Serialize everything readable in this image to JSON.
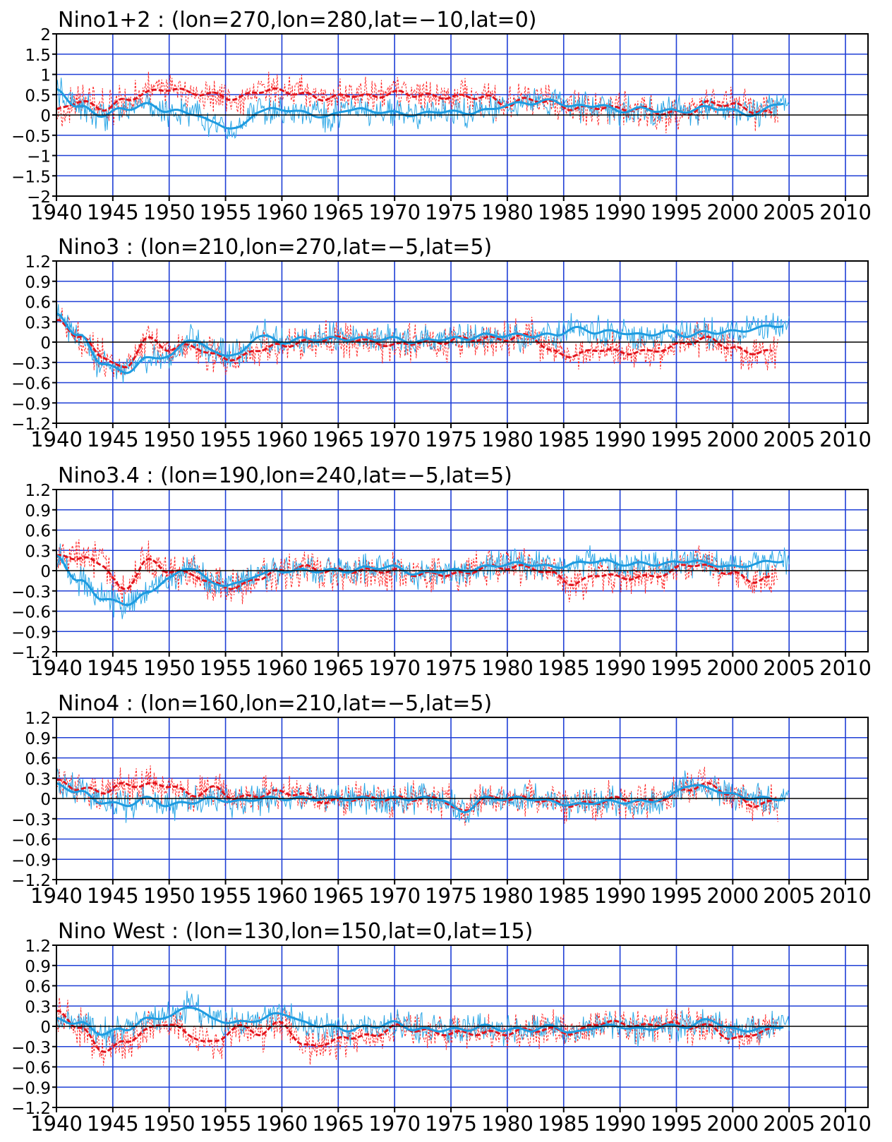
{
  "colors": {
    "frame": "#000000",
    "grid": "#1f3fd6",
    "zero_line": "#000000",
    "series_raw": "#ff2020",
    "series_smooth": "#e0141c",
    "series_blue_raw": "#2aa6e6",
    "series_blue_smooth": "#1e9be0"
  },
  "chart_data": [
    {
      "type": "line",
      "title": "Nino1+2 : (lon=270,lon=280,lat=-10,lat=0)",
      "xlim": [
        1940,
        2012
      ],
      "ylim": [
        -2,
        2
      ],
      "x_ticks": [
        1940,
        1945,
        1950,
        1955,
        1960,
        1965,
        1970,
        1975,
        1980,
        1985,
        1990,
        1995,
        2000,
        2005,
        2010
      ],
      "x_tick_labels": [
        "1940",
        "1945",
        "1950",
        "1955",
        "1960",
        "1965",
        "1970",
        "1975",
        "1980",
        "1985",
        "1990",
        "1995",
        "2000",
        "2005",
        "2010"
      ],
      "y_ticks": [
        2,
        1.5,
        1,
        0.5,
        0,
        -0.5,
        -1,
        -1.5,
        -2
      ],
      "y_tick_labels": [
        "2",
        "1.5",
        "1",
        "0.5",
        "0",
        "-0.5",
        "-1",
        "-1.5",
        "-2"
      ],
      "grid": true,
      "series": [
        {
          "color": "red",
          "style": "dashed",
          "end_year": 2004,
          "x": [
            1940,
            1942,
            1944,
            1946,
            1948,
            1950,
            1952,
            1954,
            1956,
            1958,
            1960,
            1962,
            1964,
            1966,
            1968,
            1970,
            1972,
            1974,
            1976,
            1978,
            1980,
            1982,
            1984,
            1986,
            1988,
            1990,
            1992,
            1994,
            1996,
            1998,
            2000,
            2002,
            2004
          ],
          "y": [
            0.1,
            0.35,
            0.15,
            0.35,
            0.55,
            0.65,
            0.55,
            0.5,
            0.4,
            0.6,
            0.6,
            0.5,
            0.4,
            0.5,
            0.45,
            0.55,
            0.5,
            0.45,
            0.45,
            0.45,
            0.25,
            0.4,
            0.3,
            0.15,
            0.2,
            0.15,
            0.15,
            0.05,
            0.05,
            0.3,
            0.25,
            0.1,
            0.0
          ]
        },
        {
          "color": "blue",
          "style": "solid",
          "end_year": 2005,
          "x": [
            1940,
            1942,
            1944,
            1946,
            1948,
            1950,
            1952,
            1954,
            1956,
            1958,
            1960,
            1962,
            1964,
            1966,
            1968,
            1970,
            1972,
            1974,
            1976,
            1978,
            1980,
            1982,
            1984,
            1986,
            1988,
            1990,
            1992,
            1994,
            1996,
            1998,
            2000,
            2002,
            2004
          ],
          "y": [
            0.6,
            0.2,
            0.0,
            0.15,
            0.25,
            0.1,
            0.05,
            -0.2,
            -0.35,
            0.1,
            0.15,
            0.05,
            -0.05,
            0.15,
            0.1,
            0.05,
            0.0,
            0.1,
            0.05,
            0.1,
            0.25,
            0.3,
            0.35,
            0.2,
            0.25,
            0.1,
            0.15,
            0.1,
            0.1,
            0.2,
            0.1,
            0.0,
            0.3
          ]
        }
      ]
    },
    {
      "type": "line",
      "title": "Nino3 : (lon=210,lon=270,lat=-5,lat=5)",
      "xlim": [
        1940,
        2012
      ],
      "ylim": [
        -1.2,
        1.2
      ],
      "x_ticks": [
        1940,
        1945,
        1950,
        1955,
        1960,
        1965,
        1970,
        1975,
        1980,
        1985,
        1990,
        1995,
        2000,
        2005,
        2010
      ],
      "x_tick_labels": [
        "1940",
        "1945",
        "1950",
        "1955",
        "1960",
        "1965",
        "1970",
        "1975",
        "1980",
        "1985",
        "1990",
        "1995",
        "2000",
        "2005",
        "2010"
      ],
      "y_ticks": [
        1.2,
        0.9,
        0.6,
        0.3,
        0,
        -0.3,
        -0.6,
        -0.9,
        -1.2
      ],
      "y_tick_labels": [
        "1.2",
        "0.9",
        "0.6",
        "0.3",
        "0",
        "-0.3",
        "-0.6",
        "-0.9",
        "-1.2"
      ],
      "grid": true,
      "series": [
        {
          "color": "red",
          "style": "dashed",
          "end_year": 2004,
          "x": [
            1940,
            1942,
            1944,
            1946,
            1948,
            1950,
            1952,
            1954,
            1956,
            1958,
            1960,
            1962,
            1964,
            1966,
            1968,
            1970,
            1972,
            1974,
            1976,
            1978,
            1980,
            1982,
            1984,
            1986,
            1988,
            1990,
            1992,
            1994,
            1996,
            1998,
            2000,
            2002,
            2004
          ],
          "y": [
            0.3,
            0.1,
            -0.2,
            -0.4,
            0.05,
            -0.1,
            -0.05,
            -0.2,
            -0.25,
            -0.1,
            -0.05,
            0.0,
            0.05,
            0.05,
            0.0,
            -0.05,
            0.0,
            0.0,
            0.05,
            0.05,
            0.05,
            0.1,
            -0.15,
            -0.2,
            -0.1,
            -0.15,
            -0.15,
            -0.1,
            0.0,
            0.05,
            -0.1,
            -0.15,
            -0.15
          ]
        },
        {
          "color": "blue",
          "style": "solid",
          "end_year": 2005,
          "x": [
            1940,
            1942,
            1944,
            1946,
            1948,
            1950,
            1952,
            1954,
            1956,
            1958,
            1960,
            1962,
            1964,
            1966,
            1968,
            1970,
            1972,
            1974,
            1976,
            1978,
            1980,
            1982,
            1984,
            1986,
            1988,
            1990,
            1992,
            1994,
            1996,
            1998,
            2000,
            2002,
            2004
          ],
          "y": [
            0.4,
            0.1,
            -0.3,
            -0.45,
            -0.25,
            -0.2,
            0.05,
            -0.15,
            -0.2,
            0.1,
            0.0,
            0.05,
            0.05,
            0.05,
            0.05,
            0.05,
            0.0,
            0.05,
            0.05,
            0.1,
            0.1,
            0.1,
            0.1,
            0.2,
            0.15,
            0.15,
            0.1,
            0.15,
            0.1,
            0.15,
            0.15,
            0.2,
            0.25
          ]
        }
      ]
    },
    {
      "type": "line",
      "title": "Nino3.4 : (lon=190,lon=240,lat=-5,lat=5)",
      "xlim": [
        1940,
        2012
      ],
      "ylim": [
        -1.2,
        1.2
      ],
      "x_ticks": [
        1940,
        1945,
        1950,
        1955,
        1960,
        1965,
        1970,
        1975,
        1980,
        1985,
        1990,
        1995,
        2000,
        2005,
        2010
      ],
      "x_tick_labels": [
        "1940",
        "1945",
        "1950",
        "1955",
        "1960",
        "1965",
        "1970",
        "1975",
        "1980",
        "1985",
        "1990",
        "1995",
        "2000",
        "2005",
        "2010"
      ],
      "y_ticks": [
        1.2,
        0.9,
        0.6,
        0.3,
        0,
        -0.3,
        -0.6,
        -0.9,
        -1.2
      ],
      "y_tick_labels": [
        "1.2",
        "0.9",
        "0.6",
        "0.3",
        "0",
        "-0.3",
        "-0.6",
        "-0.9",
        "-1.2"
      ],
      "grid": true,
      "series": [
        {
          "color": "red",
          "style": "dashed",
          "end_year": 2004,
          "x": [
            1940,
            1942,
            1944,
            1946,
            1948,
            1950,
            1952,
            1954,
            1956,
            1958,
            1960,
            1962,
            1964,
            1966,
            1968,
            1970,
            1972,
            1974,
            1976,
            1978,
            1980,
            1982,
            1984,
            1986,
            1988,
            1990,
            1992,
            1994,
            1996,
            1998,
            2000,
            2002,
            2004
          ],
          "y": [
            0.2,
            0.2,
            0.1,
            -0.3,
            0.15,
            0.0,
            -0.05,
            -0.2,
            -0.25,
            -0.1,
            0.0,
            0.05,
            0.0,
            0.0,
            0.0,
            0.0,
            -0.05,
            -0.05,
            -0.05,
            0.05,
            0.05,
            0.05,
            -0.05,
            -0.2,
            -0.05,
            -0.1,
            -0.1,
            -0.05,
            0.1,
            0.05,
            -0.05,
            -0.15,
            -0.1
          ]
        },
        {
          "color": "blue",
          "style": "solid",
          "end_year": 2005,
          "x": [
            1940,
            1942,
            1944,
            1946,
            1948,
            1950,
            1952,
            1954,
            1956,
            1958,
            1960,
            1962,
            1964,
            1966,
            1968,
            1970,
            1972,
            1974,
            1976,
            1978,
            1980,
            1982,
            1984,
            1986,
            1988,
            1990,
            1992,
            1994,
            1996,
            1998,
            2000,
            2002,
            2004
          ],
          "y": [
            0.2,
            -0.15,
            -0.4,
            -0.5,
            -0.35,
            -0.1,
            0.05,
            -0.2,
            -0.2,
            -0.05,
            0.0,
            0.0,
            0.0,
            0.0,
            0.05,
            0.05,
            -0.05,
            0.0,
            0.0,
            0.05,
            0.1,
            0.1,
            0.05,
            0.1,
            0.15,
            0.1,
            0.1,
            0.1,
            0.15,
            0.1,
            0.05,
            0.1,
            0.15
          ]
        }
      ]
    },
    {
      "type": "line",
      "title": "Nino4 : (lon=160,lon=210,lat=-5,lat=5)",
      "xlim": [
        1940,
        2012
      ],
      "ylim": [
        -1.2,
        1.2
      ],
      "x_ticks": [
        1940,
        1945,
        1950,
        1955,
        1960,
        1965,
        1970,
        1975,
        1980,
        1985,
        1990,
        1995,
        2000,
        2005,
        2010
      ],
      "x_tick_labels": [
        "1940",
        "1945",
        "1950",
        "1955",
        "1960",
        "1965",
        "1970",
        "1975",
        "1980",
        "1985",
        "1990",
        "1995",
        "2000",
        "2005",
        "2010"
      ],
      "y_ticks": [
        1.2,
        0.9,
        0.6,
        0.3,
        0,
        -0.3,
        -0.6,
        -0.9,
        -1.2
      ],
      "y_tick_labels": [
        "1.2",
        "0.9",
        "0.6",
        "0.3",
        "0",
        "-0.3",
        "-0.6",
        "-0.9",
        "-1.2"
      ],
      "grid": true,
      "series": [
        {
          "color": "red",
          "style": "dashed",
          "end_year": 2004,
          "x": [
            1940,
            1942,
            1944,
            1946,
            1948,
            1950,
            1952,
            1954,
            1956,
            1958,
            1960,
            1962,
            1964,
            1966,
            1968,
            1970,
            1972,
            1974,
            1976,
            1978,
            1980,
            1982,
            1984,
            1986,
            1988,
            1990,
            1992,
            1994,
            1996,
            1998,
            2000,
            2002,
            2004
          ],
          "y": [
            0.25,
            0.15,
            0.1,
            0.2,
            0.2,
            0.2,
            0.05,
            0.15,
            0.0,
            0.05,
            0.1,
            0.05,
            -0.05,
            0.0,
            0.0,
            0.0,
            0.0,
            0.0,
            -0.2,
            0.0,
            0.0,
            0.0,
            -0.05,
            -0.1,
            -0.05,
            0.0,
            -0.05,
            0.0,
            0.15,
            0.2,
            0.05,
            -0.1,
            -0.05
          ]
        },
        {
          "color": "blue",
          "style": "solid",
          "end_year": 2005,
          "x": [
            1940,
            1942,
            1944,
            1946,
            1948,
            1950,
            1952,
            1954,
            1956,
            1958,
            1960,
            1962,
            1964,
            1966,
            1968,
            1970,
            1972,
            1974,
            1976,
            1978,
            1980,
            1982,
            1984,
            1986,
            1988,
            1990,
            1992,
            1994,
            1996,
            1998,
            2000,
            2002,
            2004
          ],
          "y": [
            0.2,
            0.1,
            -0.05,
            -0.1,
            0.0,
            -0.1,
            -0.05,
            0.0,
            -0.05,
            0.0,
            0.0,
            0.0,
            0.0,
            0.0,
            0.0,
            0.0,
            0.0,
            0.0,
            -0.2,
            0.0,
            0.0,
            0.0,
            -0.05,
            -0.1,
            -0.05,
            -0.05,
            -0.05,
            0.0,
            0.2,
            0.15,
            0.05,
            0.0,
            0.0
          ]
        }
      ]
    },
    {
      "type": "line",
      "title": "Nino West : (lon=130,lon=150,lat=0,lat=15)",
      "xlim": [
        1940,
        2012
      ],
      "ylim": [
        -1.2,
        1.2
      ],
      "x_ticks": [
        1940,
        1945,
        1950,
        1955,
        1960,
        1965,
        1970,
        1975,
        1980,
        1985,
        1990,
        1995,
        2000,
        2005,
        2010
      ],
      "x_tick_labels": [
        "1940",
        "1945",
        "1950",
        "1955",
        "1960",
        "1965",
        "1970",
        "1975",
        "1980",
        "1985",
        "1990",
        "1995",
        "2000",
        "2005",
        "2010"
      ],
      "y_ticks": [
        1.2,
        0.9,
        0.6,
        0.3,
        0,
        -0.3,
        -0.6,
        -0.9,
        -1.2
      ],
      "y_tick_labels": [
        "1.2",
        "0.9",
        "0.6",
        "0.3",
        "0",
        "-0.3",
        "-0.6",
        "-0.9",
        "-1.2"
      ],
      "grid": true,
      "series": [
        {
          "color": "red",
          "style": "dashed",
          "end_year": 2004,
          "x": [
            1940,
            1942,
            1944,
            1946,
            1948,
            1950,
            1952,
            1954,
            1956,
            1958,
            1960,
            1962,
            1964,
            1966,
            1968,
            1970,
            1972,
            1974,
            1976,
            1978,
            1980,
            1982,
            1984,
            1986,
            1988,
            1990,
            1992,
            1994,
            1996,
            1998,
            2000,
            2002,
            2004
          ],
          "y": [
            0.2,
            0.0,
            -0.35,
            -0.25,
            -0.05,
            0.05,
            -0.15,
            -0.25,
            0.0,
            -0.1,
            0.05,
            -0.3,
            -0.25,
            -0.15,
            -0.15,
            0.0,
            -0.05,
            -0.1,
            -0.1,
            -0.1,
            -0.1,
            -0.05,
            -0.05,
            -0.1,
            0.05,
            0.05,
            0.0,
            0.05,
            0.0,
            0.0,
            -0.2,
            -0.1,
            -0.05
          ]
        },
        {
          "color": "blue",
          "style": "solid",
          "end_year": 2005,
          "x": [
            1940,
            1942,
            1944,
            1946,
            1948,
            1950,
            1952,
            1954,
            1956,
            1958,
            1960,
            1962,
            1964,
            1966,
            1968,
            1970,
            1972,
            1974,
            1976,
            1978,
            1980,
            1982,
            1984,
            1986,
            1988,
            1990,
            1992,
            1994,
            1996,
            1998,
            2000,
            2002,
            2004
          ],
          "y": [
            0.1,
            0.05,
            -0.1,
            -0.05,
            0.1,
            0.15,
            0.3,
            0.1,
            0.05,
            0.1,
            0.2,
            0.05,
            0.0,
            -0.05,
            0.0,
            0.05,
            -0.05,
            -0.05,
            -0.05,
            0.0,
            -0.05,
            -0.05,
            0.0,
            -0.1,
            0.0,
            0.0,
            -0.05,
            0.0,
            0.0,
            0.1,
            -0.05,
            -0.05,
            0.0
          ]
        }
      ]
    }
  ]
}
